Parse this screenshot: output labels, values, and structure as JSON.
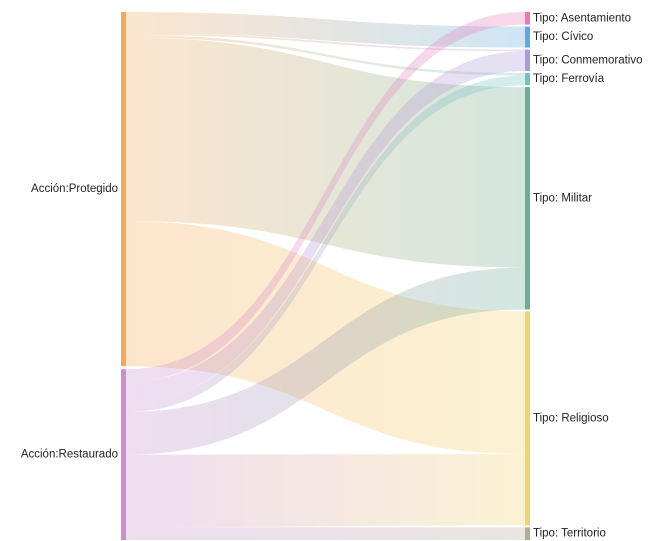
{
  "chart_data": {
    "type": "sankey",
    "title": "",
    "sources": [
      {
        "id": "protegido",
        "label": "Acción:Protegido",
        "color": "#f5a95a"
      },
      {
        "id": "restaurado",
        "label": "Acción:Restaurado",
        "color": "#c98fcf"
      }
    ],
    "targets": [
      {
        "id": "asentamiento",
        "label": "Tipo: Asentamiento",
        "color": "#e879b8"
      },
      {
        "id": "civico",
        "label": "Tipo: Cívico",
        "color": "#5fa8e0"
      },
      {
        "id": "conmemorativo",
        "label": "Tipo: Conmemorativo",
        "color": "#a99ad8"
      },
      {
        "id": "ferrovia",
        "label": "Tipo: Ferrovía",
        "color": "#6cc4c0"
      },
      {
        "id": "militar",
        "label": "Tipo: Militar",
        "color": "#6bae94"
      },
      {
        "id": "religioso",
        "label": "Tipo: Religioso",
        "color": "#f3d46c"
      },
      {
        "id": "territorio",
        "label": "Tipo: Territorio",
        "color": "#b5a99a"
      }
    ],
    "links": [
      {
        "source": "protegido",
        "target": "civico",
        "value": 5
      },
      {
        "source": "protegido",
        "target": "conmemorativo",
        "value": 0.4
      },
      {
        "source": "protegido",
        "target": "ferrovia",
        "value": 0.6
      },
      {
        "source": "protegido",
        "target": "militar",
        "value": 43
      },
      {
        "source": "protegido",
        "target": "religioso",
        "value": 34
      },
      {
        "source": "restaurado",
        "target": "asentamiento",
        "value": 3
      },
      {
        "source": "restaurado",
        "target": "conmemorativo",
        "value": 4.7
      },
      {
        "source": "restaurado",
        "target": "ferrovia",
        "value": 2.3
      },
      {
        "source": "restaurado",
        "target": "militar",
        "value": 10
      },
      {
        "source": "restaurado",
        "target": "religioso",
        "value": 17
      },
      {
        "source": "restaurado",
        "target": "territorio",
        "value": 3
      }
    ]
  }
}
